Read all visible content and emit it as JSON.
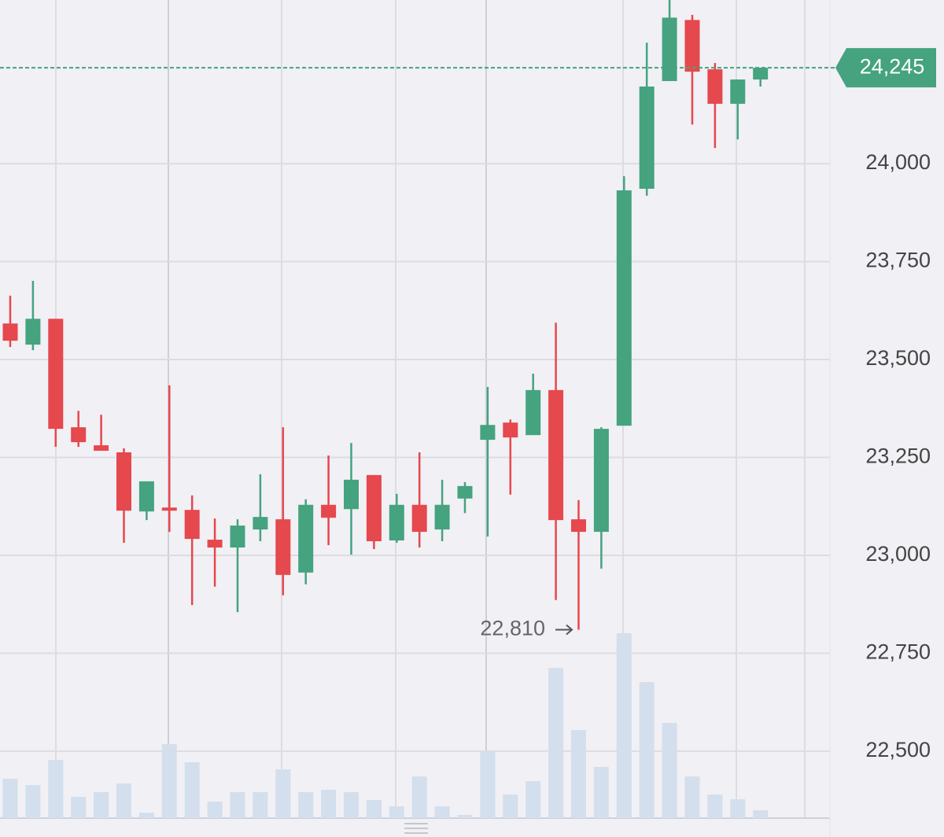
{
  "chart_data": {
    "type": "candlestick",
    "open": [
      23592,
      23538,
      23604,
      23327,
      23281,
      23263,
      23112,
      23122,
      23116,
      23040,
      23020,
      23066,
      23092,
      22956,
      23129,
      23118,
      23205,
      23038,
      23129,
      23066,
      23145,
      23295,
      23339,
      23307,
      23422,
      23092,
      23060,
      23331,
      23936,
      24211,
      24367,
      24241,
      24153,
      24215
    ],
    "high": [
      23663,
      23701,
      23604,
      23369,
      23359,
      23273,
      23189,
      23434,
      23153,
      23094,
      23092,
      23207,
      23327,
      23143,
      23255,
      23287,
      23205,
      23157,
      23263,
      23193,
      23187,
      23430,
      23347,
      23464,
      23594,
      23141,
      23327,
      23968,
      24309,
      24418,
      24380,
      24257,
      24215,
      24245
    ],
    "low": [
      23532,
      23524,
      23277,
      23277,
      23267,
      23032,
      23090,
      23060,
      22873,
      22920,
      22855,
      23036,
      22898,
      22926,
      23026,
      23002,
      23016,
      23032,
      23020,
      23036,
      23108,
      23048,
      23155,
      23307,
      22886,
      22810,
      22966,
      23331,
      23918,
      24211,
      24100,
      24040,
      24062,
      24197
    ],
    "close": [
      23548,
      23604,
      23323,
      23289,
      23267,
      23114,
      23189,
      23114,
      23042,
      23020,
      23076,
      23098,
      22950,
      23129,
      23096,
      23193,
      23036,
      23129,
      23060,
      23129,
      23177,
      23333,
      23301,
      23422,
      23090,
      23060,
      23323,
      23932,
      24197,
      24373,
      24235,
      24153,
      24215,
      24245
    ],
    "volume": [
      50,
      42,
      74,
      27,
      33,
      44,
      7,
      94,
      71,
      21,
      33,
      33,
      62,
      33,
      36,
      33,
      23,
      15,
      53,
      15,
      4,
      85,
      30,
      47,
      191,
      112,
      65,
      235,
      173,
      121,
      53,
      30,
      24,
      10
    ],
    "volume_lim": [
      0,
      1040
    ],
    "ylim": [
      22329,
      24418
    ],
    "yticks": [
      {
        "value": 22500,
        "label": "22,500"
      },
      {
        "value": 22750,
        "label": "22,750"
      },
      {
        "value": 23000,
        "label": "23,000"
      },
      {
        "value": 23250,
        "label": "23,250"
      },
      {
        "value": 23500,
        "label": "23,500"
      },
      {
        "value": 23750,
        "label": "23,750"
      },
      {
        "value": 24000,
        "label": "24,000"
      }
    ],
    "last_price": {
      "value": 24245,
      "label": "24,245"
    },
    "low_annotation": {
      "value": 22810,
      "label": "22,810"
    },
    "up_color": "#45a37f",
    "down_color": "#e5484d",
    "volume_color": "#d3dfec",
    "grid": true
  }
}
